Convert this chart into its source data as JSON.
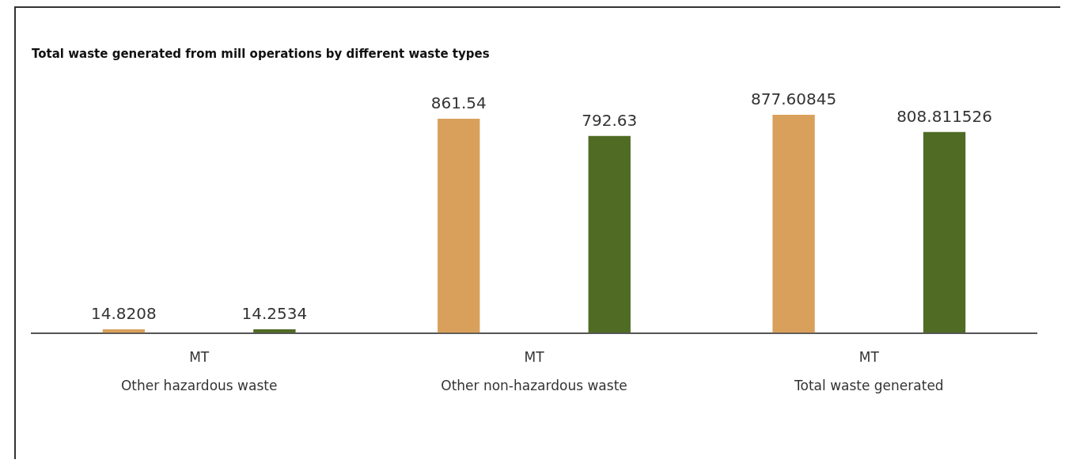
{
  "chart_data": {
    "type": "bar",
    "title": "Total waste generated from mill operations by different waste types",
    "categories": [
      "MT\nOther hazardous waste",
      "MT\nOther non-hazardous waste",
      "MT\nTotal waste generated"
    ],
    "series": [
      {
        "color": "#d9a05b",
        "values": [
          14.8208,
          861.54,
          877.60845
        ]
      },
      {
        "color": "#4f6b24",
        "values": [
          14.2534,
          792.63,
          808.811526
        ]
      }
    ],
    "data_labels": true,
    "grid": false,
    "legend": false
  }
}
